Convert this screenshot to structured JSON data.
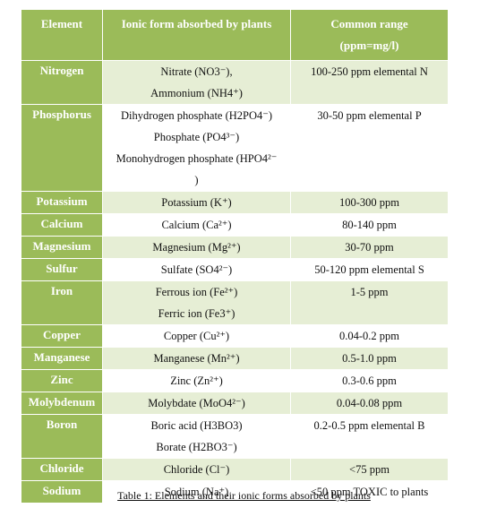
{
  "table": {
    "headers": {
      "element": "Element",
      "ionic_form": "Ionic form absorbed by plants",
      "range_line1": "Common range",
      "range_line2": "(ppm=mg/l)"
    },
    "rows": [
      {
        "element": "Nitrogen",
        "forms": [
          "Nitrate (NO3⁻),",
          "Ammonium (NH4⁺)"
        ],
        "range": "100-250 ppm elemental N"
      },
      {
        "element": "Phosphorus",
        "forms": [
          "Dihydrogen phosphate (H2PO4⁻)",
          "Phosphate (PO4³⁻)",
          "Monohydrogen phosphate (HPO4²⁻",
          ")"
        ],
        "range": "30-50 ppm elemental P"
      },
      {
        "element": "Potassium",
        "forms": [
          "Potassium (K⁺)"
        ],
        "range": "100-300 ppm"
      },
      {
        "element": "Calcium",
        "forms": [
          "Calcium (Ca²⁺)"
        ],
        "range": "80-140 ppm"
      },
      {
        "element": "Magnesium",
        "forms": [
          "Magnesium (Mg²⁺)"
        ],
        "range": "30-70 ppm"
      },
      {
        "element": "Sulfur",
        "forms": [
          "Sulfate (SO4²⁻)"
        ],
        "range": "50-120 ppm elemental S"
      },
      {
        "element": "Iron",
        "forms": [
          "Ferrous ion (Fe²⁺)",
          "Ferric ion (Fe3⁺)"
        ],
        "range": "1-5 ppm"
      },
      {
        "element": "Copper",
        "forms": [
          "Copper (Cu²⁺)"
        ],
        "range": "0.04-0.2 ppm"
      },
      {
        "element": "Manganese",
        "forms": [
          "Manganese (Mn²⁺)"
        ],
        "range": "0.5-1.0 ppm"
      },
      {
        "element": "Zinc",
        "forms": [
          "Zinc (Zn²⁺)"
        ],
        "range": "0.3-0.6 ppm"
      },
      {
        "element": "Molybdenum",
        "forms": [
          "Molybdate (MoO4²⁻)"
        ],
        "range": "0.04-0.08 ppm"
      },
      {
        "element": "Boron",
        "forms": [
          "Boric acid (H3BO3)",
          "Borate (H2BO3⁻)"
        ],
        "range": "0.2-0.5 ppm elemental B"
      },
      {
        "element": "Chloride",
        "forms": [
          "Chloride (Cl⁻)"
        ],
        "range": "<75 ppm"
      },
      {
        "element": "Sodium",
        "forms": [
          "Sodium (Na⁺)"
        ],
        "range": "<50 ppm TOXIC to plants"
      }
    ]
  },
  "caption": "Table 1: Elements and their ionic forms absorbed by plants",
  "colors": {
    "header_green": "#9bbb59",
    "band_light_green": "#e6eed5",
    "white": "#ffffff"
  }
}
